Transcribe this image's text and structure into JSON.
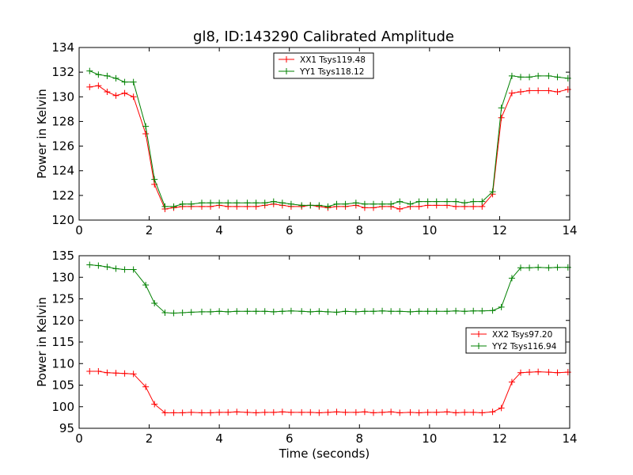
{
  "title": "gl8, ID:143290 Calibrated Amplitude",
  "colors": {
    "red": "#ff0000",
    "green": "#008000"
  },
  "chart_data": [
    {
      "type": "line",
      "ylabel": "Power in Kelvin",
      "xlabel": "",
      "xlim": [
        0,
        14
      ],
      "ylim": [
        120,
        134
      ],
      "xticks": [
        0,
        2,
        4,
        6,
        8,
        10,
        12,
        14
      ],
      "yticks": [
        120,
        122,
        124,
        126,
        128,
        130,
        132,
        134
      ],
      "legend_position": "top-center",
      "x": [
        0.3,
        0.55,
        0.8,
        1.05,
        1.3,
        1.55,
        1.9,
        2.15,
        2.45,
        2.7,
        2.95,
        3.2,
        3.5,
        3.75,
        4.0,
        4.25,
        4.5,
        4.8,
        5.05,
        5.3,
        5.55,
        5.8,
        6.05,
        6.35,
        6.6,
        6.85,
        7.1,
        7.35,
        7.6,
        7.9,
        8.15,
        8.4,
        8.65,
        8.9,
        9.15,
        9.45,
        9.7,
        9.95,
        10.2,
        10.5,
        10.75,
        11.0,
        11.25,
        11.5,
        11.8,
        12.05,
        12.35,
        12.6,
        12.85,
        13.1,
        13.4,
        13.65,
        13.95
      ],
      "series": [
        {
          "name": "XX1 Tsys119.48",
          "color": "#ff0000",
          "values": [
            130.8,
            130.9,
            130.4,
            130.1,
            130.3,
            130.0,
            127.0,
            122.9,
            120.9,
            121.0,
            121.1,
            121.1,
            121.1,
            121.1,
            121.2,
            121.1,
            121.1,
            121.1,
            121.1,
            121.2,
            121.3,
            121.2,
            121.1,
            121.1,
            121.2,
            121.1,
            121.0,
            121.1,
            121.1,
            121.2,
            121.0,
            121.0,
            121.1,
            121.1,
            120.9,
            121.1,
            121.1,
            121.2,
            121.2,
            121.2,
            121.1,
            121.1,
            121.1,
            121.1,
            122.1,
            128.3,
            130.3,
            130.4,
            130.5,
            130.5,
            130.5,
            130.4,
            130.6
          ]
        },
        {
          "name": "YY1 Tsys118.12",
          "color": "#008000",
          "values": [
            132.1,
            131.8,
            131.7,
            131.5,
            131.2,
            131.2,
            127.6,
            123.3,
            121.1,
            121.1,
            121.3,
            121.3,
            121.4,
            121.4,
            121.4,
            121.4,
            121.4,
            121.4,
            121.4,
            121.4,
            121.5,
            121.4,
            121.3,
            121.2,
            121.2,
            121.2,
            121.1,
            121.3,
            121.3,
            121.4,
            121.3,
            121.3,
            121.3,
            121.3,
            121.5,
            121.3,
            121.5,
            121.5,
            121.5,
            121.5,
            121.5,
            121.4,
            121.5,
            121.5,
            122.3,
            129.1,
            131.7,
            131.6,
            131.6,
            131.7,
            131.7,
            131.6,
            131.5
          ]
        }
      ]
    },
    {
      "type": "line",
      "ylabel": "Power in Kelvin",
      "xlabel": "Time (seconds)",
      "xlim": [
        0,
        14
      ],
      "ylim": [
        95,
        135
      ],
      "xticks": [
        0,
        2,
        4,
        6,
        8,
        10,
        12,
        14
      ],
      "yticks": [
        95,
        100,
        105,
        110,
        115,
        120,
        125,
        130,
        135
      ],
      "legend_position": "center-right",
      "x": [
        0.3,
        0.55,
        0.8,
        1.05,
        1.3,
        1.55,
        1.9,
        2.15,
        2.45,
        2.7,
        2.95,
        3.2,
        3.5,
        3.75,
        4.0,
        4.25,
        4.5,
        4.8,
        5.05,
        5.3,
        5.55,
        5.8,
        6.05,
        6.35,
        6.6,
        6.85,
        7.1,
        7.35,
        7.6,
        7.9,
        8.15,
        8.4,
        8.65,
        8.9,
        9.15,
        9.45,
        9.7,
        9.95,
        10.2,
        10.5,
        10.75,
        11.0,
        11.25,
        11.5,
        11.8,
        12.05,
        12.35,
        12.6,
        12.85,
        13.1,
        13.4,
        13.65,
        13.95
      ],
      "series": [
        {
          "name": "XX2 Tsys97.20",
          "color": "#ff0000",
          "values": [
            108.2,
            108.2,
            107.9,
            107.8,
            107.7,
            107.6,
            104.6,
            100.6,
            98.6,
            98.6,
            98.6,
            98.7,
            98.6,
            98.6,
            98.7,
            98.7,
            98.8,
            98.7,
            98.6,
            98.7,
            98.7,
            98.8,
            98.7,
            98.7,
            98.7,
            98.6,
            98.7,
            98.8,
            98.7,
            98.7,
            98.8,
            98.6,
            98.7,
            98.8,
            98.6,
            98.7,
            98.6,
            98.7,
            98.7,
            98.8,
            98.6,
            98.7,
            98.7,
            98.6,
            98.8,
            99.7,
            105.7,
            107.9,
            108.0,
            108.1,
            108.0,
            107.9,
            108.0
          ]
        },
        {
          "name": "YY2 Tsys116.94",
          "color": "#008000",
          "values": [
            132.9,
            132.7,
            132.4,
            132.0,
            131.8,
            131.8,
            128.2,
            124.0,
            121.8,
            121.7,
            121.8,
            121.9,
            122.0,
            122.0,
            122.1,
            122.0,
            122.1,
            122.1,
            122.1,
            122.1,
            122.0,
            122.1,
            122.2,
            122.1,
            122.0,
            122.1,
            122.0,
            121.9,
            122.1,
            122.0,
            122.1,
            122.1,
            122.2,
            122.1,
            122.1,
            122.0,
            122.1,
            122.1,
            122.1,
            122.1,
            122.2,
            122.1,
            122.2,
            122.2,
            122.3,
            123.1,
            129.8,
            132.2,
            132.2,
            132.3,
            132.2,
            132.3,
            132.3
          ]
        }
      ]
    }
  ]
}
